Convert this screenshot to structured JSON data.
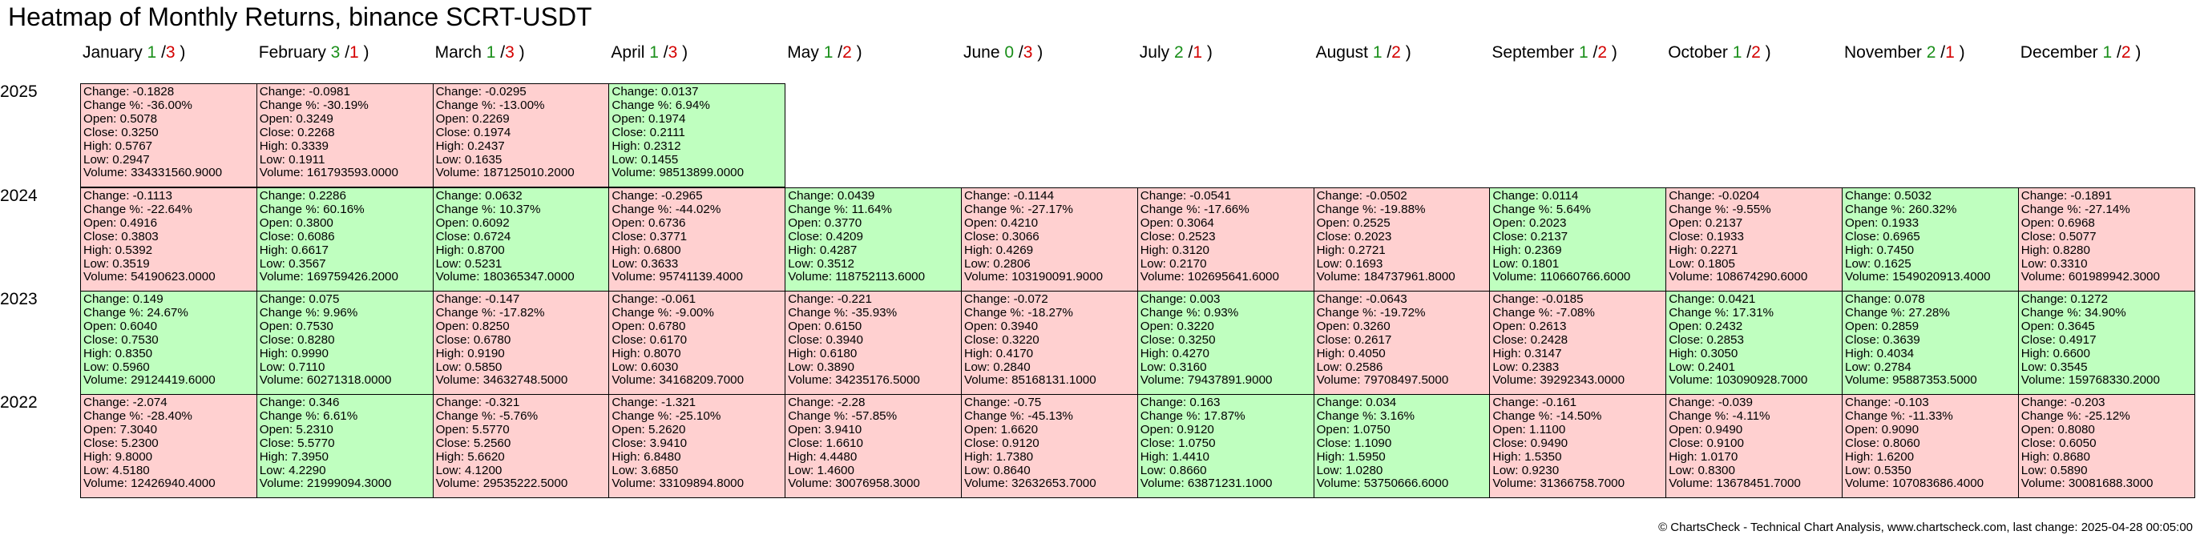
{
  "title": "Heatmap of Monthly Returns, binance SCRT-USDT",
  "footer": "© ChartsCheck - Technical Chart Analysis, www.chartscheck.com, last change: 2025-04-28 00:05:00",
  "colors": {
    "positive": "#bfffbf",
    "negative": "#ffd0d0",
    "up_count": "#1a8f1a",
    "down_count": "#d40000"
  },
  "chart_data": {
    "type": "heatmap",
    "months": [
      {
        "name": "January",
        "up": "1",
        "down": "3"
      },
      {
        "name": "February",
        "up": "3",
        "down": "1"
      },
      {
        "name": "March",
        "up": "1",
        "down": "3"
      },
      {
        "name": "April",
        "up": "1",
        "down": "3"
      },
      {
        "name": "May",
        "up": "1",
        "down": "2"
      },
      {
        "name": "June",
        "up": "0",
        "down": "3"
      },
      {
        "name": "July",
        "up": "2",
        "down": "1"
      },
      {
        "name": "August",
        "up": "1",
        "down": "2"
      },
      {
        "name": "September",
        "up": "1",
        "down": "2"
      },
      {
        "name": "October",
        "up": "1",
        "down": "2"
      },
      {
        "name": "November",
        "up": "2",
        "down": "1"
      },
      {
        "name": "December",
        "up": "1",
        "down": "2"
      }
    ],
    "years": [
      {
        "year": "2025",
        "cells": [
          {
            "change": "-0.1828",
            "change_pct": "-36.00%",
            "open": "0.5078",
            "close": "0.3250",
            "high": "0.5767",
            "low": "0.2947",
            "volume": "334331560.9000"
          },
          {
            "change": "-0.0981",
            "change_pct": "-30.19%",
            "open": "0.3249",
            "close": "0.2268",
            "high": "0.3339",
            "low": "0.1911",
            "volume": "161793593.0000"
          },
          {
            "change": "-0.0295",
            "change_pct": "-13.00%",
            "open": "0.2269",
            "close": "0.1974",
            "high": "0.2437",
            "low": "0.1635",
            "volume": "187125010.2000"
          },
          {
            "change": "0.0137",
            "change_pct": "6.94%",
            "open": "0.1974",
            "close": "0.2111",
            "high": "0.2312",
            "low": "0.1455",
            "volume": "98513899.0000"
          }
        ]
      },
      {
        "year": "2024",
        "cells": [
          {
            "change": "-0.1113",
            "change_pct": "-22.64%",
            "open": "0.4916",
            "close": "0.3803",
            "high": "0.5392",
            "low": "0.3519",
            "volume": "54190623.0000"
          },
          {
            "change": "0.2286",
            "change_pct": "60.16%",
            "open": "0.3800",
            "close": "0.6086",
            "high": "0.6617",
            "low": "0.3567",
            "volume": "169759426.2000"
          },
          {
            "change": "0.0632",
            "change_pct": "10.37%",
            "open": "0.6092",
            "close": "0.6724",
            "high": "0.8700",
            "low": "0.5231",
            "volume": "180365347.0000"
          },
          {
            "change": "-0.2965",
            "change_pct": "-44.02%",
            "open": "0.6736",
            "close": "0.3771",
            "high": "0.6800",
            "low": "0.3633",
            "volume": "95741139.4000"
          },
          {
            "change": "0.0439",
            "change_pct": "11.64%",
            "open": "0.3770",
            "close": "0.4209",
            "high": "0.4287",
            "low": "0.3512",
            "volume": "118752113.6000"
          },
          {
            "change": "-0.1144",
            "change_pct": "-27.17%",
            "open": "0.4210",
            "close": "0.3066",
            "high": "0.4269",
            "low": "0.2806",
            "volume": "103190091.9000"
          },
          {
            "change": "-0.0541",
            "change_pct": "-17.66%",
            "open": "0.3064",
            "close": "0.2523",
            "high": "0.3120",
            "low": "0.2170",
            "volume": "102695641.6000"
          },
          {
            "change": "-0.0502",
            "change_pct": "-19.88%",
            "open": "0.2525",
            "close": "0.2023",
            "high": "0.2721",
            "low": "0.1693",
            "volume": "184737961.8000"
          },
          {
            "change": "0.0114",
            "change_pct": "5.64%",
            "open": "0.2023",
            "close": "0.2137",
            "high": "0.2369",
            "low": "0.1801",
            "volume": "110660766.6000"
          },
          {
            "change": "-0.0204",
            "change_pct": "-9.55%",
            "open": "0.2137",
            "close": "0.1933",
            "high": "0.2271",
            "low": "0.1805",
            "volume": "108674290.6000"
          },
          {
            "change": "0.5032",
            "change_pct": "260.32%",
            "open": "0.1933",
            "close": "0.6965",
            "high": "0.7450",
            "low": "0.1625",
            "volume": "1549020913.4000"
          },
          {
            "change": "-0.1891",
            "change_pct": "-27.14%",
            "open": "0.6968",
            "close": "0.5077",
            "high": "0.8280",
            "low": "0.3310",
            "volume": "601989942.3000"
          }
        ]
      },
      {
        "year": "2023",
        "cells": [
          {
            "change": "0.149",
            "change_pct": "24.67%",
            "open": "0.6040",
            "close": "0.7530",
            "high": "0.8350",
            "low": "0.5960",
            "volume": "29124419.6000"
          },
          {
            "change": "0.075",
            "change_pct": "9.96%",
            "open": "0.7530",
            "close": "0.8280",
            "high": "0.9990",
            "low": "0.7110",
            "volume": "60271318.0000"
          },
          {
            "change": "-0.147",
            "change_pct": "-17.82%",
            "open": "0.8250",
            "close": "0.6780",
            "high": "0.9190",
            "low": "0.5850",
            "volume": "34632748.5000"
          },
          {
            "change": "-0.061",
            "change_pct": "-9.00%",
            "open": "0.6780",
            "close": "0.6170",
            "high": "0.8070",
            "low": "0.6030",
            "volume": "34168209.7000"
          },
          {
            "change": "-0.221",
            "change_pct": "-35.93%",
            "open": "0.6150",
            "close": "0.3940",
            "high": "0.6180",
            "low": "0.3890",
            "volume": "34235176.5000"
          },
          {
            "change": "-0.072",
            "change_pct": "-18.27%",
            "open": "0.3940",
            "close": "0.3220",
            "high": "0.4170",
            "low": "0.2840",
            "volume": "85168131.1000"
          },
          {
            "change": "0.003",
            "change_pct": "0.93%",
            "open": "0.3220",
            "close": "0.3250",
            "high": "0.4270",
            "low": "0.3160",
            "volume": "79437891.9000"
          },
          {
            "change": "-0.0643",
            "change_pct": "-19.72%",
            "open": "0.3260",
            "close": "0.2617",
            "high": "0.4050",
            "low": "0.2586",
            "volume": "79708497.5000"
          },
          {
            "change": "-0.0185",
            "change_pct": "-7.08%",
            "open": "0.2613",
            "close": "0.2428",
            "high": "0.3147",
            "low": "0.2383",
            "volume": "39292343.0000"
          },
          {
            "change": "0.0421",
            "change_pct": "17.31%",
            "open": "0.2432",
            "close": "0.2853",
            "high": "0.3050",
            "low": "0.2401",
            "volume": "103090928.7000"
          },
          {
            "change": "0.078",
            "change_pct": "27.28%",
            "open": "0.2859",
            "close": "0.3639",
            "high": "0.4034",
            "low": "0.2784",
            "volume": "95887353.5000"
          },
          {
            "change": "0.1272",
            "change_pct": "34.90%",
            "open": "0.3645",
            "close": "0.4917",
            "high": "0.6600",
            "low": "0.3545",
            "volume": "159768330.2000"
          }
        ]
      },
      {
        "year": "2022",
        "cells": [
          {
            "change": "-2.074",
            "change_pct": "-28.40%",
            "open": "7.3040",
            "close": "5.2300",
            "high": "9.8000",
            "low": "4.5180",
            "volume": "12426940.4000"
          },
          {
            "change": "0.346",
            "change_pct": "6.61%",
            "open": "5.2310",
            "close": "5.5770",
            "high": "7.3950",
            "low": "4.2290",
            "volume": "21999094.3000"
          },
          {
            "change": "-0.321",
            "change_pct": "-5.76%",
            "open": "5.5770",
            "close": "5.2560",
            "high": "5.6620",
            "low": "4.1200",
            "volume": "29535222.5000"
          },
          {
            "change": "-1.321",
            "change_pct": "-25.10%",
            "open": "5.2620",
            "close": "3.9410",
            "high": "6.8480",
            "low": "3.6850",
            "volume": "33109894.8000"
          },
          {
            "change": "-2.28",
            "change_pct": "-57.85%",
            "open": "3.9410",
            "close": "1.6610",
            "high": "4.4480",
            "low": "1.4600",
            "volume": "30076958.3000"
          },
          {
            "change": "-0.75",
            "change_pct": "-45.13%",
            "open": "1.6620",
            "close": "0.9120",
            "high": "1.7380",
            "low": "0.8640",
            "volume": "32632653.7000"
          },
          {
            "change": "0.163",
            "change_pct": "17.87%",
            "open": "0.9120",
            "close": "1.0750",
            "high": "1.4410",
            "low": "0.8660",
            "volume": "63871231.1000"
          },
          {
            "change": "0.034",
            "change_pct": "3.16%",
            "open": "1.0750",
            "close": "1.1090",
            "high": "1.5950",
            "low": "1.0280",
            "volume": "53750666.6000"
          },
          {
            "change": "-0.161",
            "change_pct": "-14.50%",
            "open": "1.1100",
            "close": "0.9490",
            "high": "1.5350",
            "low": "0.9230",
            "volume": "31366758.7000"
          },
          {
            "change": "-0.039",
            "change_pct": "-4.11%",
            "open": "0.9490",
            "close": "0.9100",
            "high": "1.0170",
            "low": "0.8300",
            "volume": "13678451.7000"
          },
          {
            "change": "-0.103",
            "change_pct": "-11.33%",
            "open": "0.9090",
            "close": "0.8060",
            "high": "1.6200",
            "low": "0.5350",
            "volume": "107083686.4000"
          },
          {
            "change": "-0.203",
            "change_pct": "-25.12%",
            "open": "0.8080",
            "close": "0.6050",
            "high": "0.8680",
            "low": "0.5890",
            "volume": "30081688.3000"
          }
        ]
      }
    ],
    "labels": {
      "change": "Change:",
      "change_pct": "Change %:",
      "open": "Open:",
      "close": "Close:",
      "high": "High:",
      "low": "Low:",
      "volume": "Volume:"
    }
  }
}
